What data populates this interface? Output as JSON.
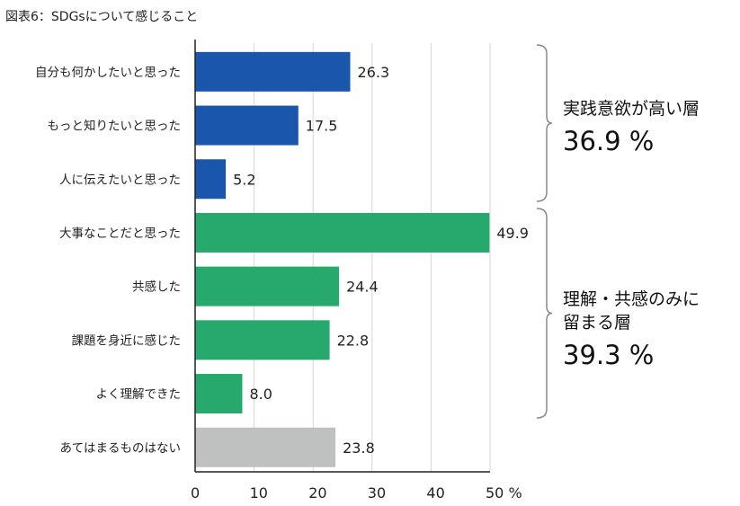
{
  "chart_data": {
    "type": "bar",
    "orientation": "horizontal",
    "title": "図表6：SDGsについて感じること",
    "categories": [
      "自分も何かしたいと思った",
      "もっと知りたいと思った",
      "人に伝えたいと思った",
      "大事なことだと思った",
      "共感した",
      "課題を身近に感じた",
      "よく理解できた",
      "あてはまるものはない"
    ],
    "values": [
      26.3,
      17.5,
      5.2,
      49.9,
      24.4,
      22.8,
      8.0,
      23.8
    ],
    "value_labels": [
      "26.3",
      "17.5",
      "5.2",
      "49.9",
      "24.4",
      "22.8",
      "8.0",
      "23.8"
    ],
    "bar_colors": [
      "#1a56ac",
      "#1a56ac",
      "#1a56ac",
      "#27a86c",
      "#27a86c",
      "#27a86c",
      "#27a86c",
      "#bfc0c0"
    ],
    "xlim": [
      0,
      50
    ],
    "xticks": [
      "0",
      "10",
      "20",
      "30",
      "40",
      "50 %"
    ],
    "xtick_values": [
      0,
      10,
      20,
      30,
      40,
      50
    ],
    "grid": true,
    "groups": [
      {
        "label": "実践意欲が高い層",
        "percent": "36.9 %",
        "categories_from": 0,
        "categories_to": 2
      },
      {
        "label_line1": "理解・共感のみに",
        "label_line2": "留まる層",
        "percent": "39.3 %",
        "categories_from": 3,
        "categories_to": 6
      }
    ]
  }
}
